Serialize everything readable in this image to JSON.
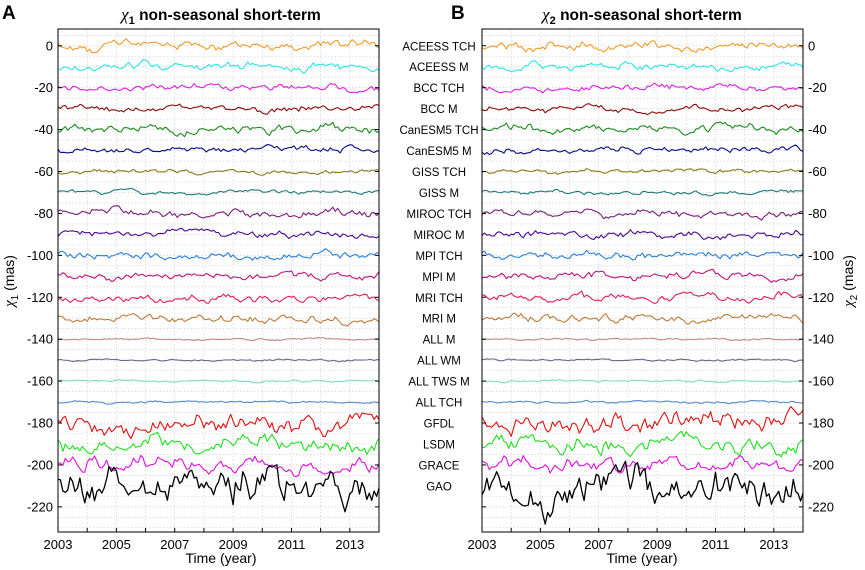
{
  "figure": {
    "panels": [
      {
        "letter": "A",
        "title_sym": "χ",
        "title_sub": "1",
        "title_rest": " non-seasonal short-term",
        "ylabel_sym": "χ",
        "ylabel_sub": "1",
        "ylabel_rest": " (mas)"
      },
      {
        "letter": "B",
        "title_sym": "χ",
        "title_sub": "2",
        "title_rest": " non-seasonal short-term",
        "ylabel_sym": "χ",
        "ylabel_sub": "2",
        "ylabel_rest": " (mas)"
      }
    ],
    "xlabel": "Time (year)"
  },
  "chart_data": {
    "type": "line",
    "title": "χ1 / χ2 non-seasonal short-term",
    "xlabel": "Time (year)",
    "ylabel": "χ (mas)",
    "xlim": [
      2003,
      2014
    ],
    "ylim": [
      -232,
      8
    ],
    "xticks": [
      2003,
      2005,
      2007,
      2009,
      2011,
      2013
    ],
    "yticks": [
      0,
      -20,
      -40,
      -60,
      -80,
      -100,
      -120,
      -140,
      -160,
      -180,
      -200,
      -220
    ],
    "grid": true,
    "series": [
      {
        "name": "ACEESS TCH",
        "offset": 0,
        "color": "#F39C2B",
        "amp": 2.2
      },
      {
        "name": "ACEESS M",
        "offset": -10,
        "color": "#2BE5E5",
        "amp": 2.0
      },
      {
        "name": "BCC TCH",
        "offset": -20,
        "color": "#E01FE0",
        "amp": 1.6
      },
      {
        "name": "BCC M",
        "offset": -30,
        "color": "#8B0A0A",
        "amp": 1.6
      },
      {
        "name": "CanESM5 TCH",
        "offset": -40,
        "color": "#1E8C1E",
        "amp": 2.0
      },
      {
        "name": "CanESM5 M",
        "offset": -50,
        "color": "#0A0A8C",
        "amp": 1.6
      },
      {
        "name": "GISS TCH",
        "offset": -60,
        "color": "#8C7A1E",
        "amp": 1.0
      },
      {
        "name": "GISS M",
        "offset": -70,
        "color": "#1E7A7A",
        "amp": 1.0
      },
      {
        "name": "MIROC TCH",
        "offset": -80,
        "color": "#7A1E7A",
        "amp": 2.0
      },
      {
        "name": "MIROC  M",
        "offset": -90,
        "color": "#4B0A8C",
        "amp": 1.8
      },
      {
        "name": "MPI TCH",
        "offset": -100,
        "color": "#2B7FE0",
        "amp": 1.8
      },
      {
        "name": "MPI M",
        "offset": -110,
        "color": "#C0147A",
        "amp": 1.8
      },
      {
        "name": "MRI TCH",
        "offset": -120,
        "color": "#E01F5A",
        "amp": 2.0
      },
      {
        "name": "MRI M",
        "offset": -130,
        "color": "#C07A3A",
        "amp": 2.0
      },
      {
        "name": "ALL M",
        "offset": -140,
        "color": "#C08A8A",
        "amp": 0.5
      },
      {
        "name": "ALL WM",
        "offset": -150,
        "color": "#6A6A8A",
        "amp": 0.5
      },
      {
        "name": "ALL TWS M",
        "offset": -160,
        "color": "#7FE0C0",
        "amp": 0.5
      },
      {
        "name": "ALL TCH",
        "offset": -170,
        "color": "#5A8ACF",
        "amp": 0.6
      },
      {
        "name": "GFDL",
        "offset": -180,
        "color": "#E01010",
        "amp": 4.5
      },
      {
        "name": "LSDM",
        "offset": -190,
        "color": "#20E020",
        "amp": 4.0
      },
      {
        "name": "GRACE",
        "offset": -200,
        "color": "#E010E0",
        "amp": 3.5
      },
      {
        "name": "GAO",
        "offset": -210,
        "color": "#000000",
        "amp": 8.5
      }
    ]
  }
}
